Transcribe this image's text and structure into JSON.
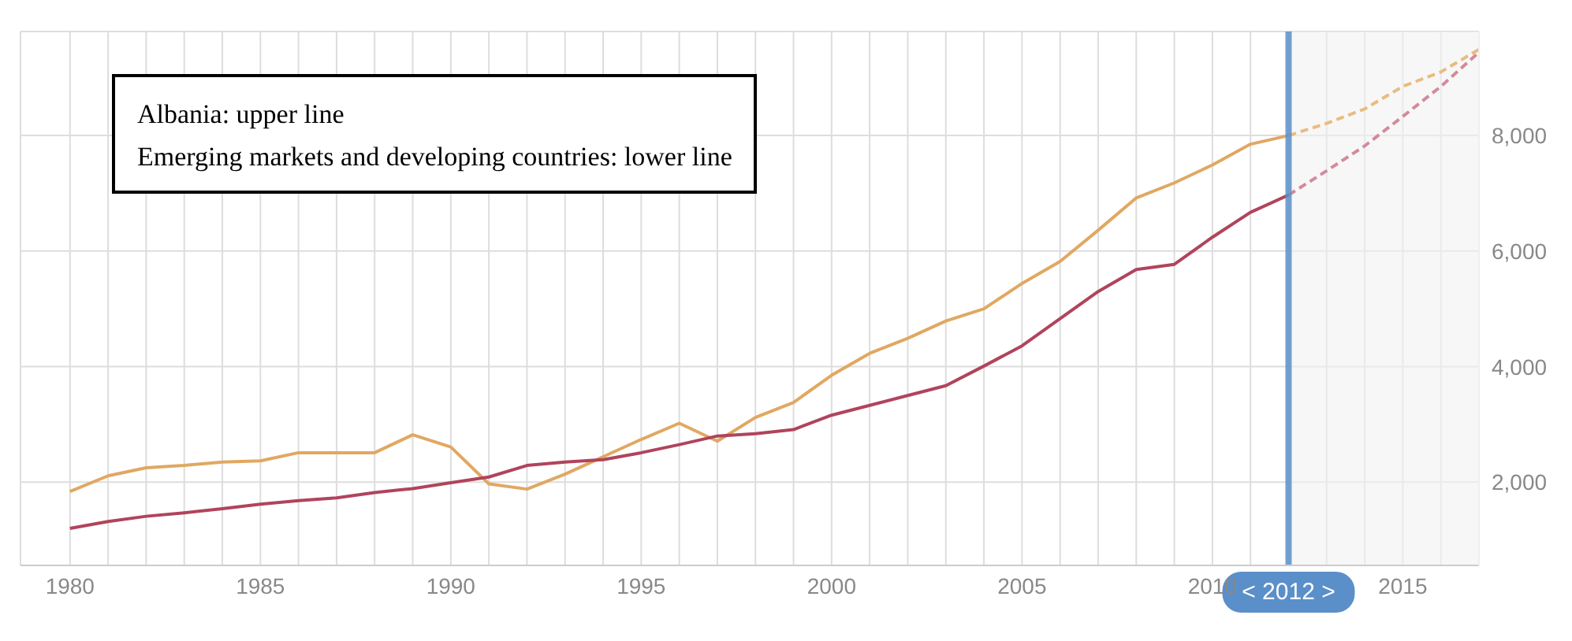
{
  "chart_data": {
    "type": "line",
    "annotations": [
      "Albania: upper line",
      "Emerging markets and developing countries: lower line"
    ],
    "series": [
      {
        "color": "#e0a862",
        "line_style": "solid",
        "x": [
          1980,
          1981,
          1982,
          1983,
          1984,
          1985,
          1986,
          1987,
          1988,
          1989,
          1990,
          1991,
          1992,
          1993,
          1994,
          1995,
          1996,
          1997,
          1998,
          1999,
          2000,
          2001,
          2002,
          2003,
          2004,
          2005,
          2006,
          2007,
          2008,
          2009,
          2010,
          2011,
          2012
        ],
        "values": [
          1840,
          2110,
          2250,
          2290,
          2350,
          2370,
          2510,
          2510,
          2510,
          2820,
          2610,
          1970,
          1880,
          2140,
          2440,
          2740,
          3020,
          2710,
          3120,
          3380,
          3850,
          4230,
          4490,
          4790,
          5000,
          5440,
          5820,
          6360,
          6920,
          7180,
          7490,
          7850,
          8000
        ]
      },
      {
        "color": "#b0445c",
        "line_style": "solid",
        "x": [
          1980,
          1981,
          1982,
          1983,
          1984,
          1985,
          1986,
          1987,
          1988,
          1989,
          1990,
          1991,
          1992,
          1993,
          1994,
          1995,
          1996,
          1997,
          1998,
          1999,
          2000,
          2001,
          2002,
          2003,
          2004,
          2005,
          2006,
          2007,
          2008,
          2009,
          2010,
          2011,
          2012
        ],
        "values": [
          1200,
          1320,
          1410,
          1470,
          1540,
          1620,
          1680,
          1730,
          1820,
          1890,
          1990,
          2090,
          2290,
          2350,
          2390,
          2510,
          2650,
          2800,
          2840,
          2910,
          3160,
          3330,
          3500,
          3670,
          4010,
          4360,
          4830,
          5300,
          5680,
          5770,
          6240,
          6670,
          6970
        ]
      },
      {
        "color": "#e8bc80",
        "line_style": "dashed",
        "x": [
          2012,
          2013,
          2014,
          2015,
          2016,
          2017
        ],
        "values": [
          8000,
          8210,
          8460,
          8850,
          9100,
          9490
        ]
      },
      {
        "color": "#d48a9a",
        "line_style": "dashed",
        "x": [
          2012,
          2013,
          2014,
          2015,
          2016,
          2017
        ],
        "values": [
          6970,
          7390,
          7820,
          8330,
          8850,
          9440
        ]
      }
    ],
    "xlim": [
      1978.7,
      2017
    ],
    "xticks": [
      1980,
      {
        "value": 1981,
        "label": null
      },
      {
        "value": 1982,
        "label": null
      },
      {
        "value": 1983,
        "label": null
      },
      {
        "value": 1984,
        "label": null
      },
      1985,
      {
        "value": 1986,
        "label": null
      },
      {
        "value": 1987,
        "label": null
      },
      {
        "value": 1988,
        "label": null
      },
      {
        "value": 1989,
        "label": null
      },
      1990,
      {
        "value": 1991,
        "label": null
      },
      {
        "value": 1992,
        "label": null
      },
      {
        "value": 1993,
        "label": null
      },
      {
        "value": 1994,
        "label": null
      },
      1995,
      {
        "value": 1996,
        "label": null
      },
      {
        "value": 1997,
        "label": null
      },
      {
        "value": 1998,
        "label": null
      },
      {
        "value": 1999,
        "label": null
      },
      2000,
      {
        "value": 2001,
        "label": null
      },
      {
        "value": 2002,
        "label": null
      },
      {
        "value": 2003,
        "label": null
      },
      {
        "value": 2004,
        "label": null
      },
      2005,
      {
        "value": 2006,
        "label": null
      },
      {
        "value": 2007,
        "label": null
      },
      {
        "value": 2008,
        "label": null
      },
      {
        "value": 2009,
        "label": null
      },
      2010,
      {
        "value": 2011,
        "label": null
      },
      {
        "value": 2012,
        "label": null
      },
      {
        "value": 2013,
        "label": null
      },
      {
        "value": 2014,
        "label": null
      },
      2015,
      {
        "value": 2016,
        "label": null
      },
      {
        "value": 2017,
        "label": null
      }
    ],
    "ylim": [
      560,
      9800
    ],
    "yticks": [
      {
        "value": 2000,
        "label": "2,000"
      },
      {
        "value": 4000,
        "label": "4,000"
      },
      {
        "value": 6000,
        "label": "6,000"
      },
      {
        "value": 8000,
        "label": "8,000"
      }
    ],
    "grid": true,
    "marker": "none",
    "ref_lines": [
      {
        "axis": "x",
        "value": 2012,
        "label": "< 2012 >",
        "color": "#5b8fc9"
      }
    ],
    "bands": [
      {
        "axis": "x",
        "from": 2012,
        "to": 2017,
        "color": "#f1f1f1"
      }
    ]
  }
}
